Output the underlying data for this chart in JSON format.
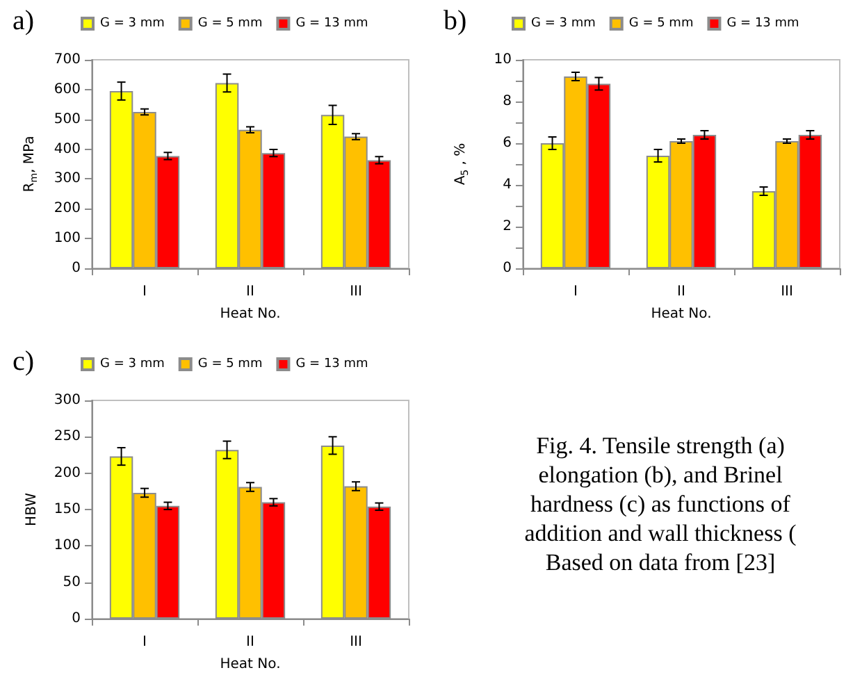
{
  "chart_data": [
    {
      "type": "bar",
      "title": "a)",
      "xlabel": "Heat No.",
      "ylabel": "R$_{m}$, MPa",
      "categories": [
        "I",
        "II",
        "III"
      ],
      "ylim": [
        0,
        700
      ],
      "yticks": [
        0,
        100,
        200,
        300,
        400,
        500,
        600,
        700
      ],
      "grid": false,
      "legend": "top",
      "series": [
        {
          "name": "G = 3 mm",
          "color": "#ffff00",
          "values": [
            595,
            622,
            515
          ],
          "errors": [
            30,
            30,
            32
          ]
        },
        {
          "name": "G = 5 mm",
          "color": "#ffc000",
          "values": [
            525,
            465,
            442
          ],
          "errors": [
            10,
            10,
            10
          ]
        },
        {
          "name": "G = 13 mm",
          "color": "#ff0000",
          "values": [
            377,
            387,
            363
          ],
          "errors": [
            12,
            12,
            12
          ]
        }
      ]
    },
    {
      "type": "bar",
      "title": "b)",
      "xlabel": "Heat No.",
      "ylabel": "A$_{5}$ , %",
      "categories": [
        "I",
        "II",
        "III"
      ],
      "ylim": [
        0,
        10
      ],
      "yticks": [
        0,
        {
          "value": 1,
          "label": null
        },
        2,
        {
          "value": 3,
          "label": null
        },
        4,
        {
          "value": 5,
          "label": null
        },
        6,
        {
          "value": 7,
          "label": null
        },
        8,
        {
          "value": 9,
          "label": null
        },
        10
      ],
      "grid": false,
      "legend": "top",
      "series": [
        {
          "name": "G = 3 mm",
          "color": "#ffff00",
          "values": [
            6.0,
            5.4,
            3.7
          ],
          "errors": [
            0.3,
            0.3,
            0.2
          ]
        },
        {
          "name": "G = 5 mm",
          "color": "#ffc000",
          "values": [
            9.2,
            6.1,
            6.1
          ],
          "errors": [
            0.2,
            0.1,
            0.1
          ]
        },
        {
          "name": "G = 13 mm",
          "color": "#ff0000",
          "values": [
            8.85,
            6.4,
            6.4
          ],
          "errors": [
            0.3,
            0.2,
            0.2
          ]
        }
      ]
    },
    {
      "type": "bar",
      "title": "c)",
      "xlabel": "Heat No.",
      "ylabel": "HBW",
      "categories": [
        "I",
        "II",
        "III"
      ],
      "ylim": [
        0,
        300
      ],
      "yticks": [
        0,
        50,
        100,
        150,
        200,
        250,
        300
      ],
      "grid": false,
      "legend": "top",
      "series": [
        {
          "name": "G = 3 mm",
          "color": "#ffff00",
          "values": [
            223,
            232,
            238
          ],
          "errors": [
            12,
            12,
            12
          ]
        },
        {
          "name": "G = 5 mm",
          "color": "#ffc000",
          "values": [
            173,
            181,
            182
          ],
          "errors": [
            6,
            6,
            6
          ]
        },
        {
          "name": "G = 13 mm",
          "color": "#ff0000",
          "values": [
            155,
            160,
            154
          ],
          "errors": [
            5,
            5,
            5
          ]
        }
      ]
    },
    {
      "type": "other",
      "annotations": [
        "Fig. 4. Tensile strength (a)",
        "elongation (b), and Brinel",
        "hardness (c) as functions of",
        "addition and wall thickness (",
        "Based on data from [23]"
      ]
    }
  ]
}
